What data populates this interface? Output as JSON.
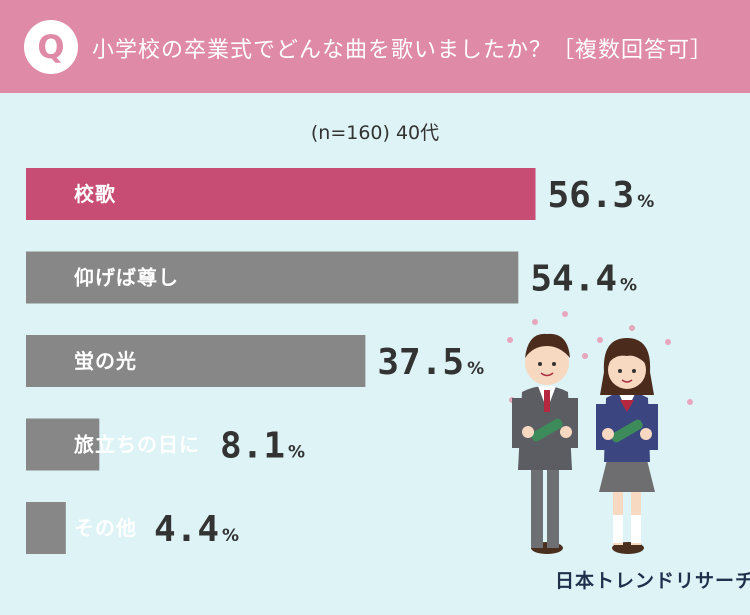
{
  "header": {
    "badge": "Q",
    "question": "小学校の卒業式でどんな曲を歌いましたか？［複数回答可］"
  },
  "subtitle": "(n=160) 40代",
  "brand": "日本トレンドリサーチ",
  "colors": {
    "header_bg": "#df8aa7",
    "page_bg": "#ddf3f6",
    "highlight_bar": "#c84d74",
    "bar": "#878787"
  },
  "chart_data": {
    "type": "bar",
    "orientation": "horizontal",
    "categories": [
      "校歌",
      "仰げば尊し",
      "蛍の光",
      "旅立ちの日に",
      "その他"
    ],
    "values": [
      56.3,
      54.4,
      37.5,
      8.1,
      4.4
    ],
    "value_labels": [
      "56.3",
      "54.4",
      "37.5",
      "8.1",
      "4.4"
    ],
    "unit": "%",
    "highlight_index": 0,
    "grid": false,
    "legend": "none"
  }
}
